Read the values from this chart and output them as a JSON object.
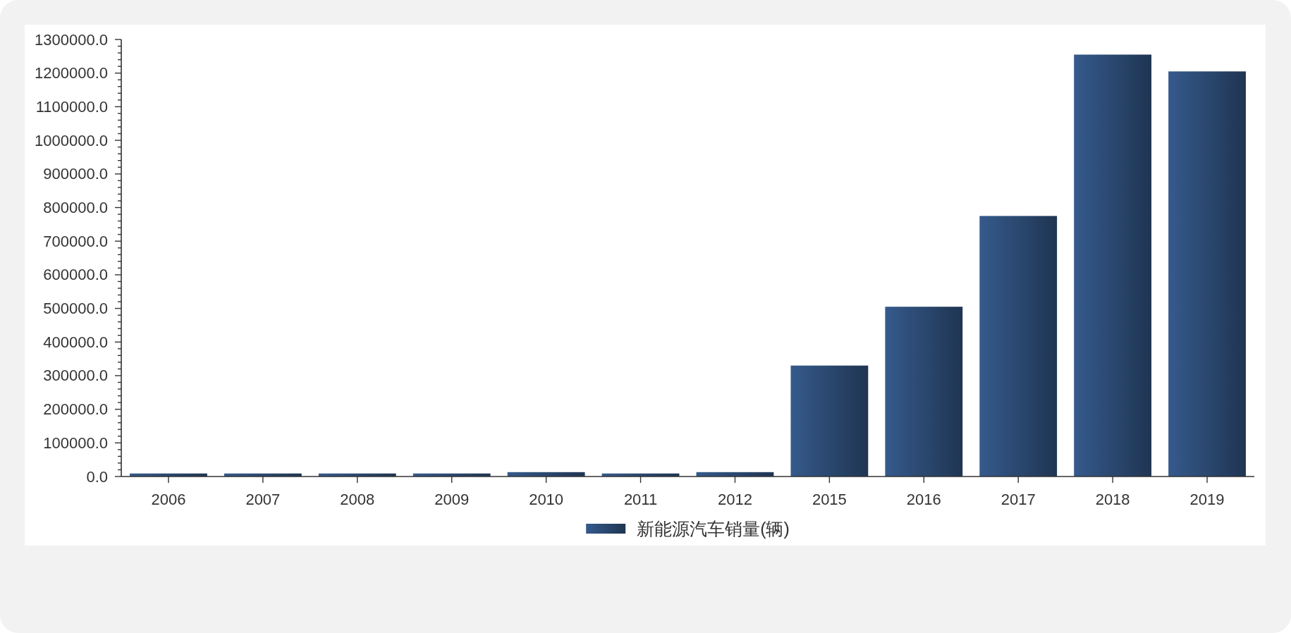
{
  "chart_data": {
    "type": "bar",
    "categories": [
      "2006",
      "2007",
      "2008",
      "2009",
      "2010",
      "2011",
      "2012",
      "2015",
      "2016",
      "2017",
      "2018",
      "2019"
    ],
    "series": [
      {
        "name": "新能源汽车销量(辆)",
        "color": "#2c4b75",
        "values": [
          9000,
          9000,
          9000,
          9000,
          13000,
          9000,
          13000,
          330000,
          505000,
          775000,
          1255000,
          1205000
        ]
      }
    ],
    "ylim": [
      0,
      1300000
    ],
    "yticks": [
      {
        "value": 0,
        "label": "0.0"
      },
      {
        "value": 20000,
        "label": null
      },
      {
        "value": 40000,
        "label": null
      },
      {
        "value": 60000,
        "label": null
      },
      {
        "value": 80000,
        "label": null
      },
      {
        "value": 100000,
        "label": "100000.0"
      },
      {
        "value": 120000,
        "label": null
      },
      {
        "value": 140000,
        "label": null
      },
      {
        "value": 160000,
        "label": null
      },
      {
        "value": 180000,
        "label": null
      },
      {
        "value": 200000,
        "label": "200000.0"
      },
      {
        "value": 220000,
        "label": null
      },
      {
        "value": 240000,
        "label": null
      },
      {
        "value": 260000,
        "label": null
      },
      {
        "value": 280000,
        "label": null
      },
      {
        "value": 300000,
        "label": "300000.0"
      },
      {
        "value": 320000,
        "label": null
      },
      {
        "value": 340000,
        "label": null
      },
      {
        "value": 360000,
        "label": null
      },
      {
        "value": 380000,
        "label": null
      },
      {
        "value": 400000,
        "label": "400000.0"
      },
      {
        "value": 420000,
        "label": null
      },
      {
        "value": 440000,
        "label": null
      },
      {
        "value": 460000,
        "label": null
      },
      {
        "value": 480000,
        "label": null
      },
      {
        "value": 500000,
        "label": "500000.0"
      },
      {
        "value": 520000,
        "label": null
      },
      {
        "value": 540000,
        "label": null
      },
      {
        "value": 560000,
        "label": null
      },
      {
        "value": 580000,
        "label": null
      },
      {
        "value": 600000,
        "label": "600000.0"
      },
      {
        "value": 620000,
        "label": null
      },
      {
        "value": 640000,
        "label": null
      },
      {
        "value": 660000,
        "label": null
      },
      {
        "value": 680000,
        "label": null
      },
      {
        "value": 700000,
        "label": "700000.0"
      },
      {
        "value": 720000,
        "label": null
      },
      {
        "value": 740000,
        "label": null
      },
      {
        "value": 760000,
        "label": null
      },
      {
        "value": 780000,
        "label": null
      },
      {
        "value": 800000,
        "label": "800000.0"
      },
      {
        "value": 820000,
        "label": null
      },
      {
        "value": 840000,
        "label": null
      },
      {
        "value": 860000,
        "label": null
      },
      {
        "value": 880000,
        "label": null
      },
      {
        "value": 900000,
        "label": "900000.0"
      },
      {
        "value": 920000,
        "label": null
      },
      {
        "value": 940000,
        "label": null
      },
      {
        "value": 960000,
        "label": null
      },
      {
        "value": 980000,
        "label": null
      },
      {
        "value": 1000000,
        "label": "1000000.0"
      },
      {
        "value": 1020000,
        "label": null
      },
      {
        "value": 1040000,
        "label": null
      },
      {
        "value": 1060000,
        "label": null
      },
      {
        "value": 1080000,
        "label": null
      },
      {
        "value": 1100000,
        "label": "1100000.0"
      },
      {
        "value": 1120000,
        "label": null
      },
      {
        "value": 1140000,
        "label": null
      },
      {
        "value": 1160000,
        "label": null
      },
      {
        "value": 1180000,
        "label": null
      },
      {
        "value": 1200000,
        "label": "1200000.0"
      },
      {
        "value": 1220000,
        "label": null
      },
      {
        "value": 1240000,
        "label": null
      },
      {
        "value": 1260000,
        "label": null
      },
      {
        "value": 1280000,
        "label": null
      },
      {
        "value": 1300000,
        "label": "1300000.0"
      }
    ],
    "legend": "bottom"
  }
}
